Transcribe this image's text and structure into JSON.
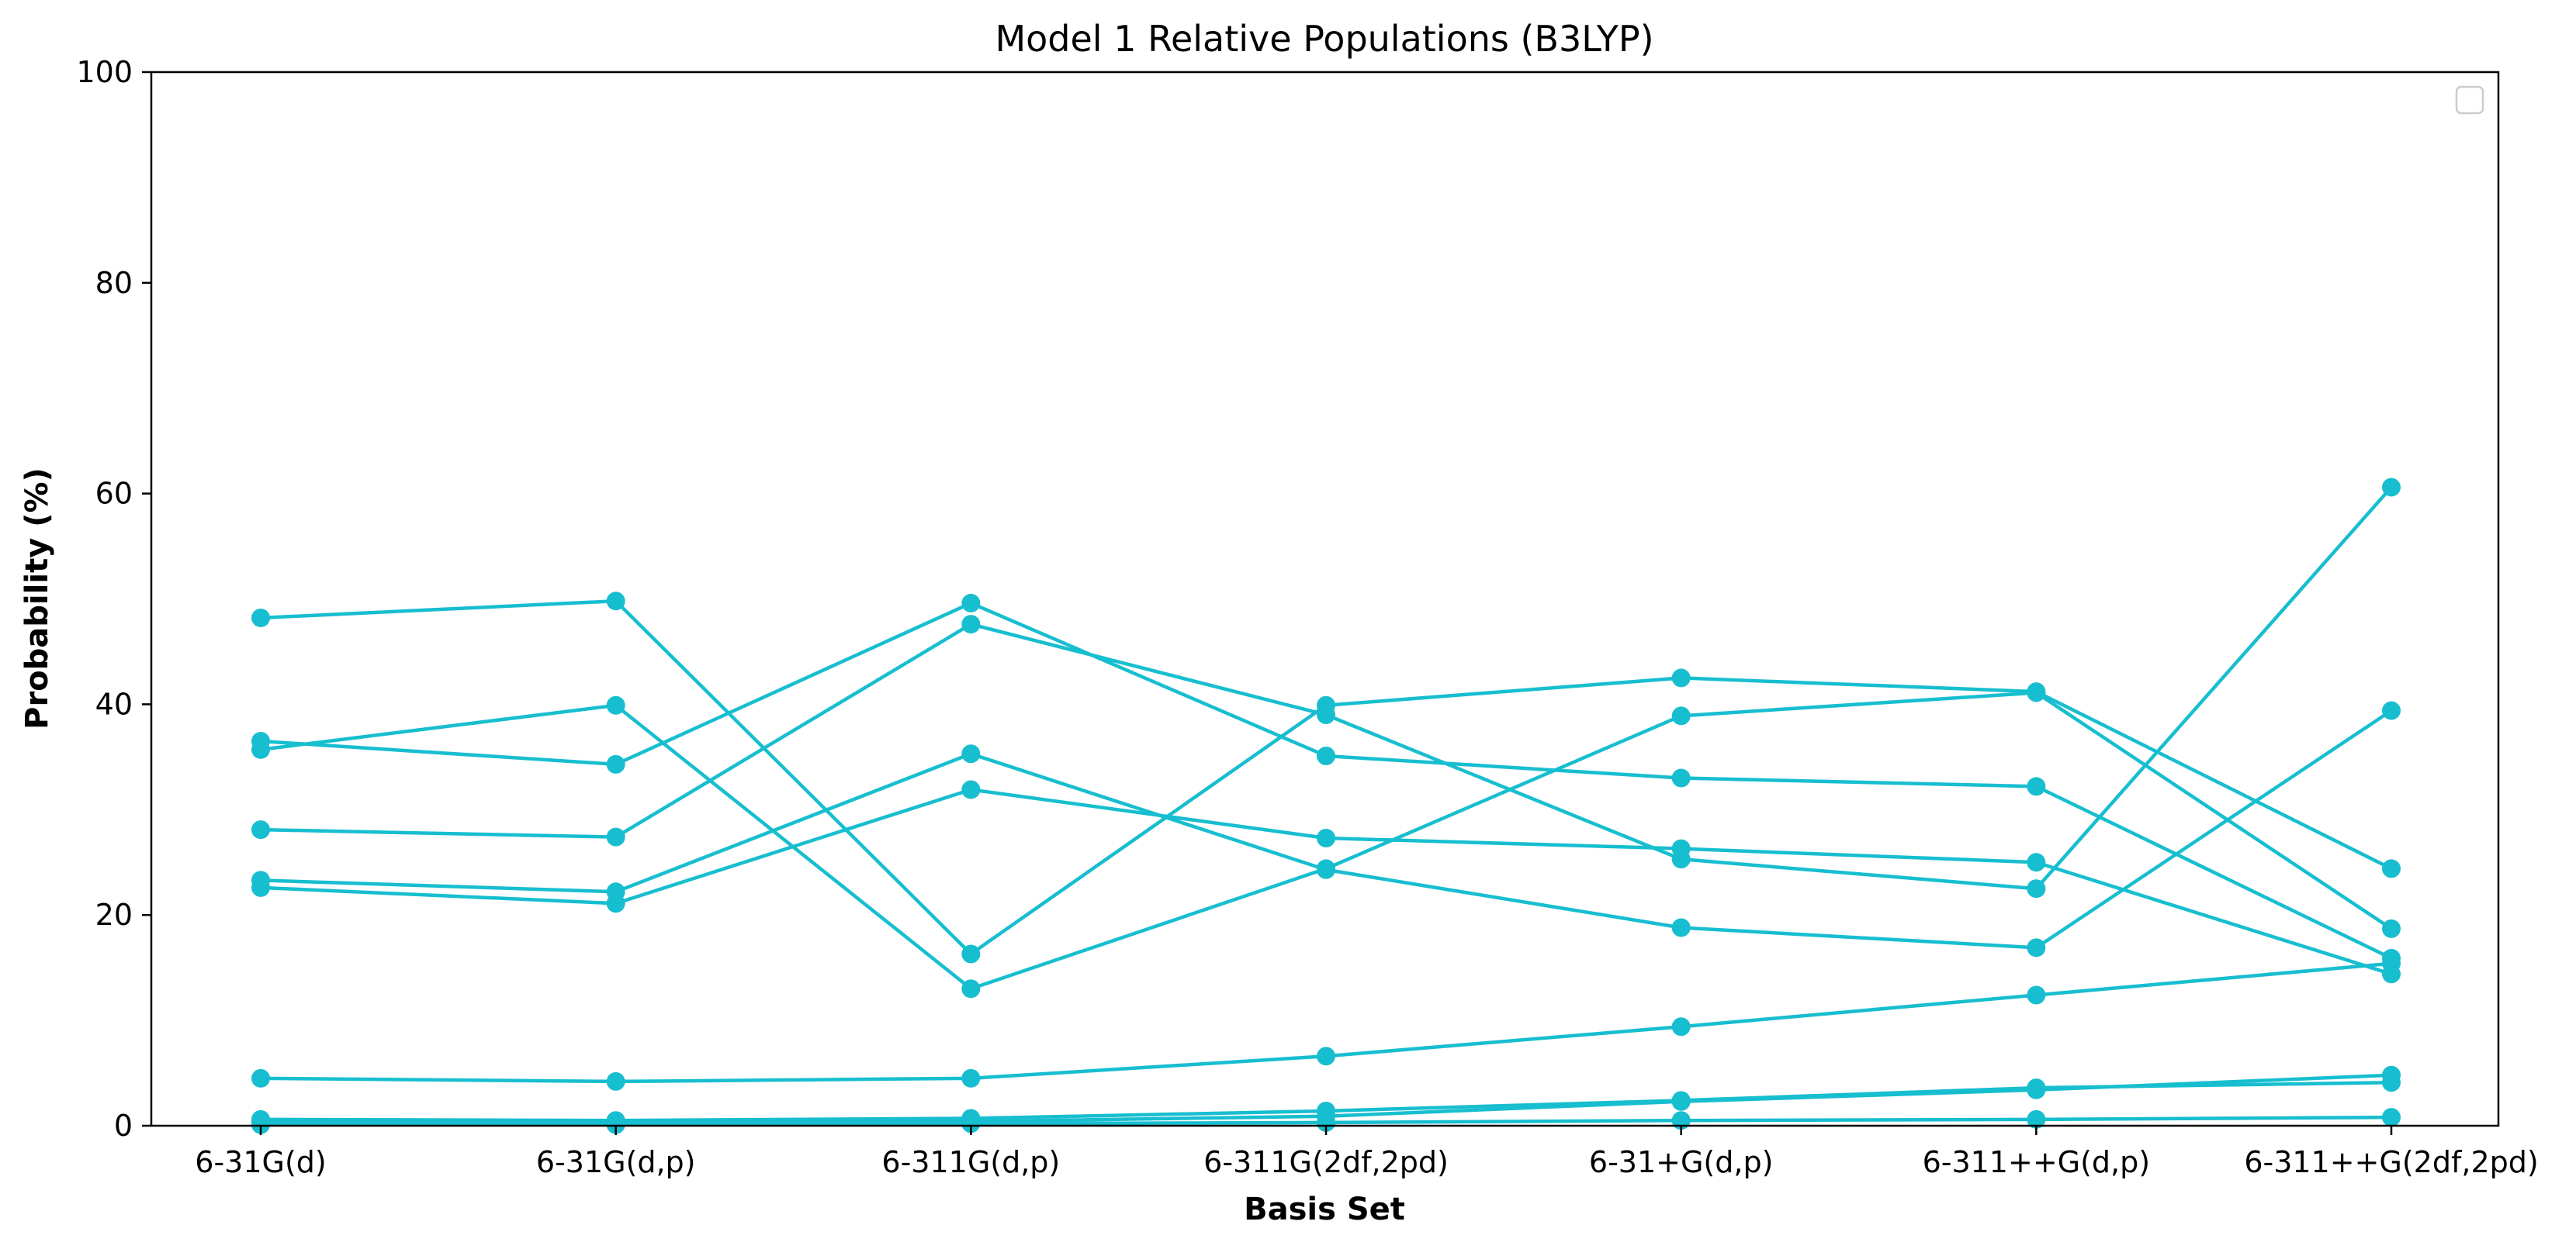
{
  "chart_data": {
    "type": "line",
    "title": "Model 1 Relative Populations (B3LYP)",
    "xlabel": "Basis Set",
    "ylabel": "Probability (%)",
    "categories": [
      "6-31G(d)",
      "6-31G(d,p)",
      "6-311G(d,p)",
      "6-311G(2df,2pd)",
      "6-31+G(d,p)",
      "6-311++G(d,p)",
      "6-311++G(2df,2pd)"
    ],
    "ylim": [
      0,
      100
    ],
    "yticks": [
      0,
      20,
      40,
      60,
      80,
      100
    ],
    "grid": false,
    "legend": "upper right (empty)",
    "colors": {
      "series": "#17becf"
    },
    "series": [
      {
        "values": [
          48.2,
          49.8,
          16.3,
          39.9,
          42.5,
          41.2,
          24.4
        ]
      },
      {
        "values": [
          36.5,
          34.3,
          49.6,
          35.1,
          33.0,
          32.2,
          15.9
        ]
      },
      {
        "values": [
          35.7,
          39.9,
          13.0,
          24.4,
          38.9,
          41.1,
          18.7
        ]
      },
      {
        "values": [
          28.1,
          27.4,
          47.6,
          39.0,
          25.3,
          22.5,
          60.6
        ]
      },
      {
        "values": [
          23.3,
          22.2,
          35.3,
          24.3,
          18.8,
          16.9,
          39.4
        ]
      },
      {
        "values": [
          22.6,
          21.1,
          31.9,
          27.3,
          26.3,
          25.0,
          14.4
        ]
      },
      {
        "values": [
          4.5,
          4.2,
          4.5,
          6.6,
          9.4,
          12.4,
          15.4
        ]
      },
      {
        "values": [
          0.6,
          0.5,
          0.7,
          1.4,
          2.4,
          3.6,
          4.1
        ]
      },
      {
        "values": [
          0.4,
          0.4,
          0.4,
          0.9,
          2.3,
          3.4,
          4.8
        ]
      },
      {
        "values": [
          0.1,
          0.1,
          0.2,
          0.3,
          0.5,
          0.6,
          0.8
        ]
      }
    ]
  }
}
